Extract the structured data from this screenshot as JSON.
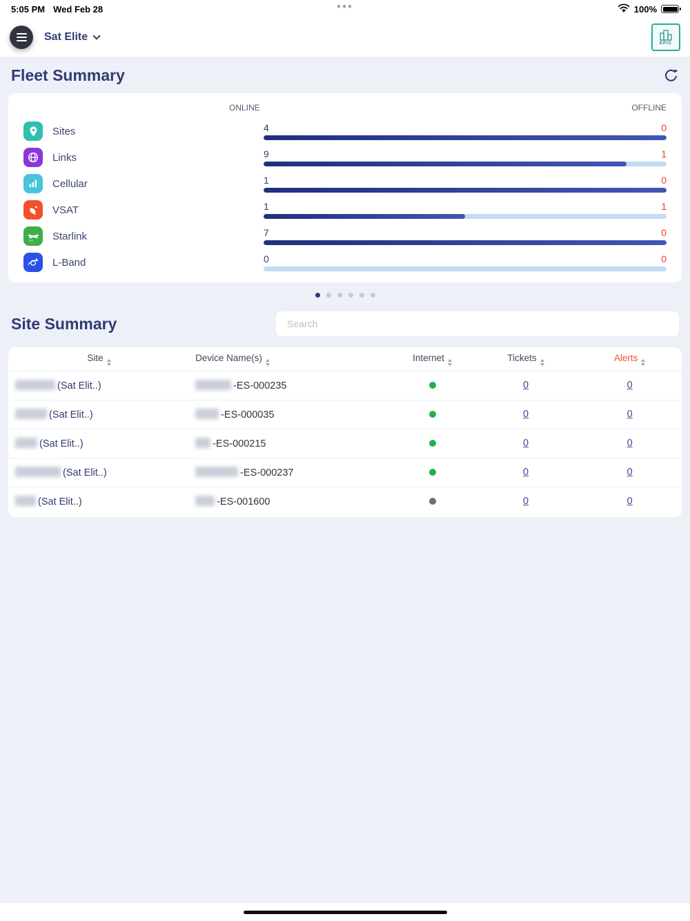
{
  "status_bar": {
    "time": "5:05 PM",
    "date": "Wed Feb 28",
    "battery_pct": "100%"
  },
  "navbar": {
    "title": "Sat Elite",
    "logo_text": "EPIC"
  },
  "fleet_summary": {
    "title": "Fleet Summary",
    "online_header": "ONLINE",
    "offline_header": "OFFLINE",
    "rows": [
      {
        "label": "Sites",
        "icon": "location-pin-icon",
        "color": "#2fbfae",
        "online": "4",
        "offline": "0",
        "online_pct": 100
      },
      {
        "label": "Links",
        "icon": "globe-icon",
        "color": "#8d36d8",
        "online": "9",
        "offline": "1",
        "online_pct": 90
      },
      {
        "label": "Cellular",
        "icon": "cellular-signal-icon",
        "color": "#49c3da",
        "online": "1",
        "offline": "0",
        "online_pct": 100
      },
      {
        "label": "VSAT",
        "icon": "satellite-dish-icon",
        "color": "#f4502c",
        "online": "1",
        "offline": "1",
        "online_pct": 50
      },
      {
        "label": "Starlink",
        "icon": "starlink-icon",
        "color": "#3fae49",
        "online": "7",
        "offline": "0",
        "online_pct": 100
      },
      {
        "label": "L-Band",
        "icon": "l-band-satellite-icon",
        "color": "#2b50e8",
        "online": "0",
        "offline": "0",
        "online_pct": 0
      }
    ],
    "pagination": {
      "dots": 6,
      "active_index": 0
    }
  },
  "site_summary": {
    "title": "Site Summary",
    "search": {
      "placeholder": "Search",
      "value": ""
    },
    "columns": [
      "Site",
      "Device Name(s)",
      "Internet",
      "Tickets",
      "Alerts"
    ],
    "rows": [
      {
        "site_visible": "(Sat Elit..)",
        "device_visible": "-ES-000235",
        "internet": "online",
        "tickets": "0",
        "alerts": "0"
      },
      {
        "site_visible": "(Sat Elit..)",
        "device_visible": "-ES-000035",
        "internet": "online",
        "tickets": "0",
        "alerts": "0"
      },
      {
        "site_visible": "(Sat Elit..)",
        "device_visible": "-ES-000215",
        "internet": "online",
        "tickets": "0",
        "alerts": "0"
      },
      {
        "site_visible": "(Sat Elit..)",
        "device_visible": "-ES-000237",
        "internet": "online",
        "tickets": "0",
        "alerts": "0"
      },
      {
        "site_visible": "(Sat Elit..)",
        "device_visible": "-ES-001600",
        "internet": "offline",
        "tickets": "0",
        "alerts": "0"
      }
    ]
  },
  "colors": {
    "accent_navy": "#323b72",
    "offline_red": "#e8402a",
    "alerts_orange": "#f4502a",
    "online_green": "#1fb14d",
    "bar_track_blue": "#c5daf3",
    "bar_fill_navy": "#2b3a8f"
  }
}
